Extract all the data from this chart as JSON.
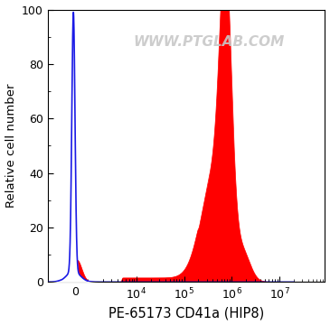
{
  "xlabel": "PE-65173 CD41a (HIP8)",
  "ylabel": "Relative cell number",
  "ylim": [
    0,
    100
  ],
  "yticks": [
    0,
    20,
    40,
    60,
    80,
    100
  ],
  "watermark": "WWW.PTGLAB.COM",
  "red_fill_color": "#FF0000",
  "blue_line_color": "#1A1AE6",
  "background_color": "#FFFFFF",
  "plot_bg_color": "#FFFFFF",
  "figsize": [
    3.65,
    3.6
  ],
  "dpi": 100
}
